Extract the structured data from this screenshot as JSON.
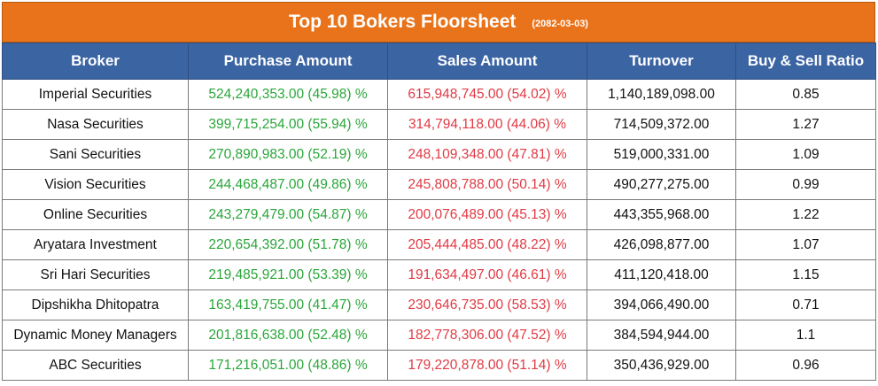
{
  "header": {
    "title": "Top 10 Bokers Floorsheet",
    "date": "(2082-03-03)"
  },
  "columns": [
    "Broker",
    "Purchase Amount",
    "Sales Amount",
    "Turnover",
    "Buy & Sell Ratio"
  ],
  "rows": [
    {
      "broker": "Imperial Securities",
      "purchase": "524,240,353.00 (45.98) %",
      "sales": "615,948,745.00 (54.02) %",
      "turnover": "1,140,189,098.00",
      "ratio": "0.85"
    },
    {
      "broker": "Nasa Securities",
      "purchase": "399,715,254.00 (55.94) %",
      "sales": "314,794,118.00 (44.06) %",
      "turnover": "714,509,372.00",
      "ratio": "1.27"
    },
    {
      "broker": "Sani Securities",
      "purchase": "270,890,983.00 (52.19) %",
      "sales": "248,109,348.00 (47.81) %",
      "turnover": "519,000,331.00",
      "ratio": "1.09"
    },
    {
      "broker": "Vision Securities",
      "purchase": "244,468,487.00 (49.86) %",
      "sales": "245,808,788.00 (50.14) %",
      "turnover": "490,277,275.00",
      "ratio": "0.99"
    },
    {
      "broker": "Online Securities",
      "purchase": "243,279,479.00 (54.87) %",
      "sales": "200,076,489.00 (45.13) %",
      "turnover": "443,355,968.00",
      "ratio": "1.22"
    },
    {
      "broker": "Aryatara Investment",
      "purchase": "220,654,392.00 (51.78) %",
      "sales": "205,444,485.00 (48.22) %",
      "turnover": "426,098,877.00",
      "ratio": "1.07"
    },
    {
      "broker": "Sri Hari Securities",
      "purchase": "219,485,921.00 (53.39) %",
      "sales": "191,634,497.00 (46.61) %",
      "turnover": "411,120,418.00",
      "ratio": "1.15"
    },
    {
      "broker": "Dipshikha Dhitopatra",
      "purchase": "163,419,755.00 (41.47) %",
      "sales": "230,646,735.00 (58.53) %",
      "turnover": "394,066,490.00",
      "ratio": "0.71"
    },
    {
      "broker": "Dynamic Money Managers",
      "purchase": "201,816,638.00 (52.48) %",
      "sales": "182,778,306.00 (47.52) %",
      "turnover": "384,594,944.00",
      "ratio": "1.1"
    },
    {
      "broker": "ABC Securities",
      "purchase": "171,216,051.00 (48.86) %",
      "sales": "179,220,878.00 (51.14) %",
      "turnover": "350,436,929.00",
      "ratio": "0.96"
    }
  ],
  "colors": {
    "banner": "#e8731a",
    "header": "#3b64a3",
    "buy": "#2aa63a",
    "sell": "#e03a44"
  }
}
